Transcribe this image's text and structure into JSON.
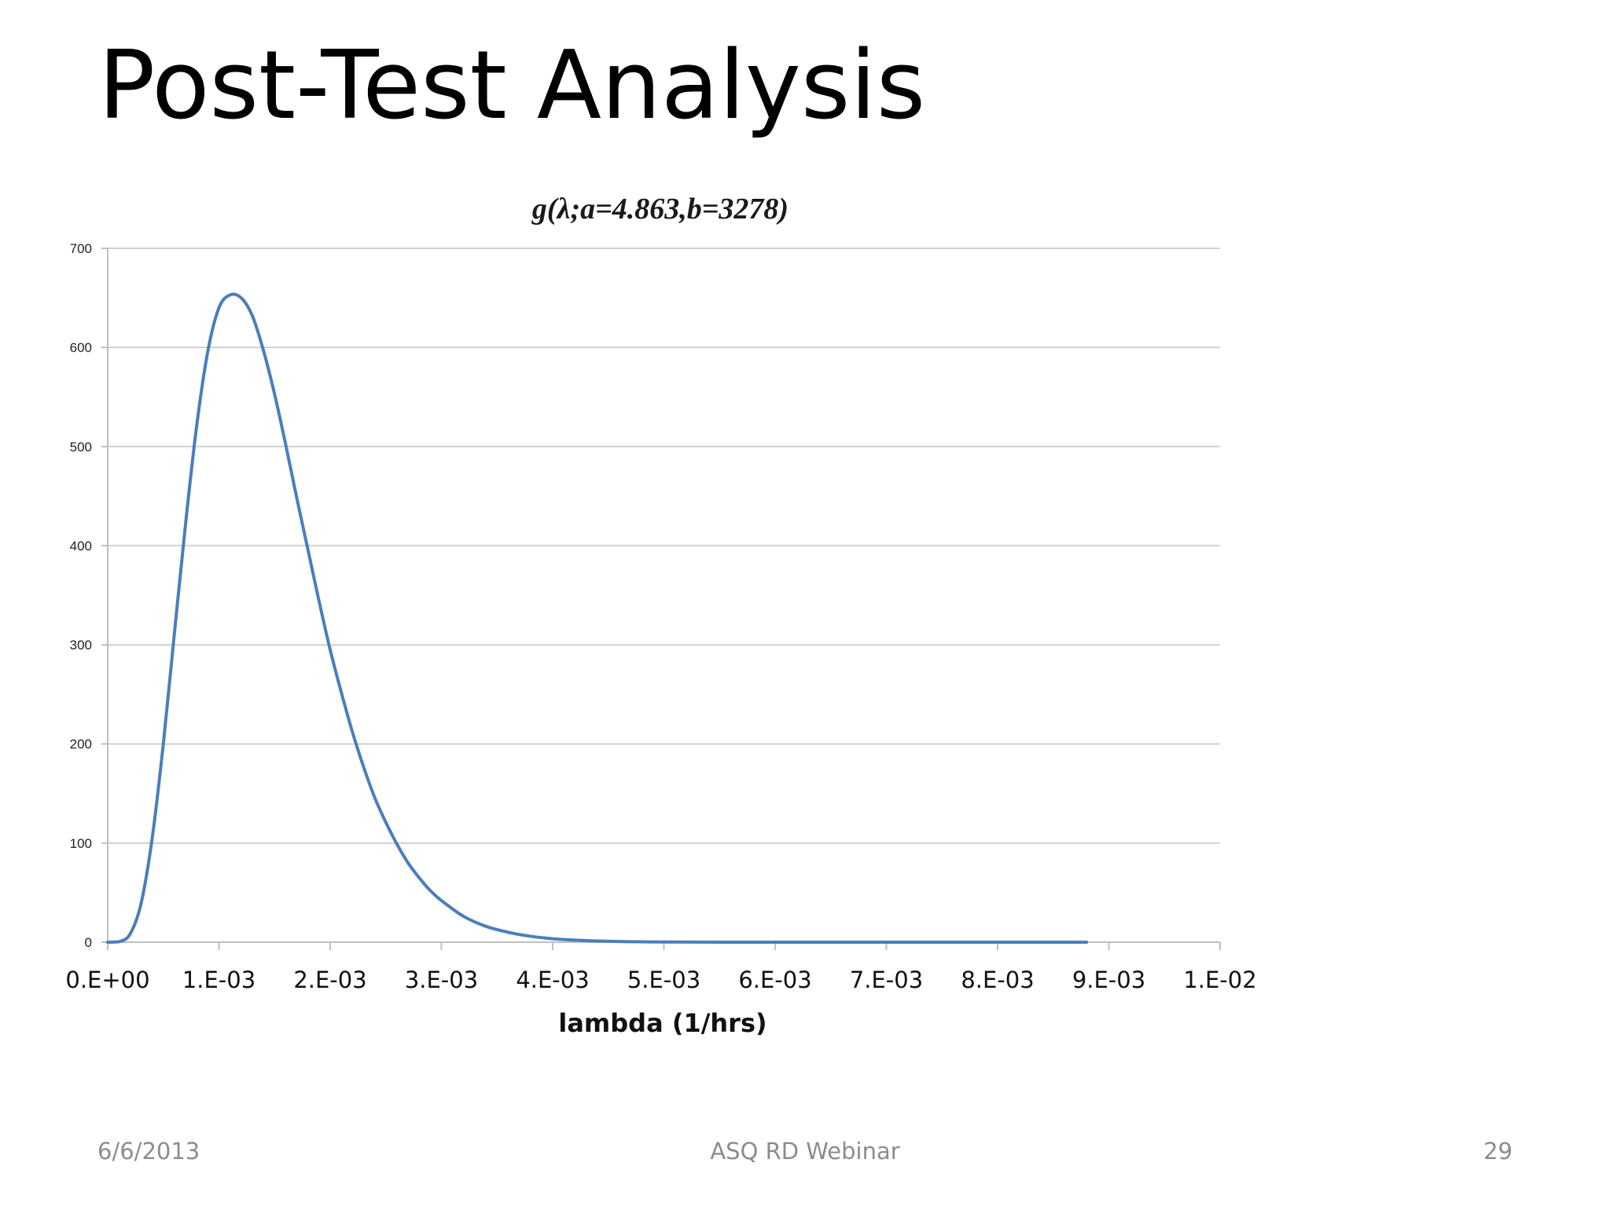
{
  "slide": {
    "title": "Post-Test Analysis",
    "footer_date": "6/6/2013",
    "footer_center": "ASQ RD Webinar",
    "footer_page": "29"
  },
  "colors": {
    "curve": "#4a7ebb",
    "grid": "#d0d0d0",
    "axis": "#bfbfbf"
  },
  "chart_data": {
    "type": "line",
    "title": "g(λ;a=4.863,b=3278)",
    "xlabel": "lambda (1/hrs)",
    "ylabel": "",
    "xlim": [
      0,
      0.01
    ],
    "ylim": [
      0,
      700
    ],
    "grid": true,
    "x_ticks": [
      0,
      0.001,
      0.002,
      0.003,
      0.004,
      0.005,
      0.006,
      0.007,
      0.008,
      0.009,
      0.01
    ],
    "x_tick_labels": [
      "0.E+00",
      "1.E-03",
      "2.E-03",
      "3.E-03",
      "4.E-03",
      "5.E-03",
      "6.E-03",
      "7.E-03",
      "8.E-03",
      "9.E-03",
      "1.E-02"
    ],
    "y_ticks": [
      0,
      100,
      200,
      300,
      400,
      500,
      600,
      700
    ],
    "y_tick_labels": [
      "0",
      "100",
      "200",
      "300",
      "400",
      "500",
      "600",
      "700"
    ],
    "series": [
      {
        "x": [
          0,
          0.0001,
          0.0002,
          0.0003,
          0.0004,
          0.0005,
          0.0006,
          0.0007,
          0.0008,
          0.0009,
          0.001,
          0.0011,
          0.0012,
          0.0013,
          0.0014,
          0.0015,
          0.0016,
          0.0017,
          0.0018,
          0.0019,
          0.002,
          0.0021,
          0.0022,
          0.0023,
          0.0024,
          0.0025,
          0.0026,
          0.0027,
          0.0028,
          0.0029,
          0.003,
          0.0032,
          0.0034,
          0.0036,
          0.0038,
          0.004,
          0.0042,
          0.0044,
          0.0046,
          0.0048,
          0.005,
          0.0055,
          0.006,
          0.0065,
          0.007,
          0.0075,
          0.008,
          0.0085,
          0.0088
        ],
        "y": [
          0,
          0.4,
          8,
          39,
          105,
          200,
          312,
          422,
          521,
          596,
          640,
          653,
          650,
          632,
          597,
          553,
          502,
          448,
          396,
          344,
          295,
          252,
          212,
          177,
          146,
          121,
          99,
          80,
          65,
          52,
          42,
          26,
          16,
          10,
          6,
          3.5,
          2.1,
          1.2,
          0.7,
          0.4,
          0.2,
          0.05,
          0.01,
          0,
          0,
          0,
          0,
          0,
          0
        ]
      }
    ]
  }
}
